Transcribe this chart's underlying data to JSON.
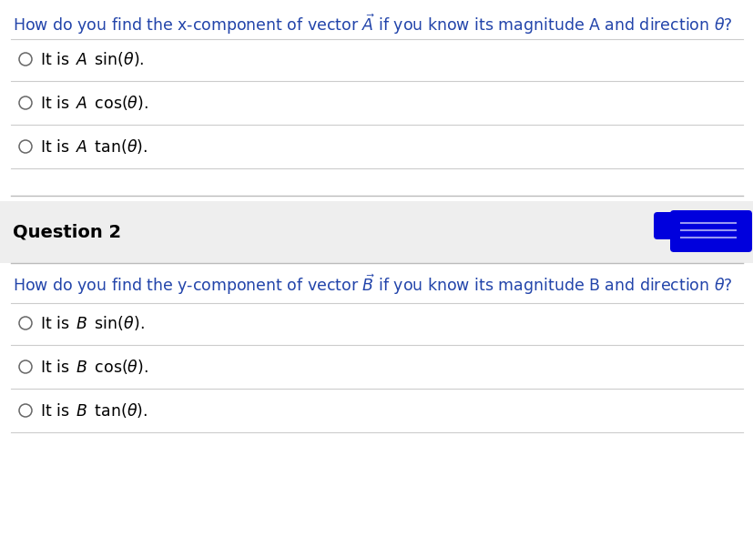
{
  "bg_color": "#ffffff",
  "header_color": "#2244aa",
  "q2_bg_color": "#eeeeee",
  "q2_label_color": "#000000",
  "blue_blob_color": "#0000dd",
  "line_color": "#cccccc",
  "circle_color": "#666666",
  "text_color": "#000000",
  "q1_question": "How do you find the x-component of vector",
  "q1_tail": " if you know its magnitude A and direction θ?",
  "q1_vec": "A",
  "q2_question": "How do you find the y-component of vector",
  "q2_tail": " if you know its magnitude B and direction θ?",
  "q2_vec": "B",
  "q2_label": "Question 2",
  "q1_opts": [
    "sin(θ).",
    "cos(θ).",
    "tan(θ)."
  ],
  "q1_vars": [
    "A",
    "A",
    "A"
  ],
  "q2_opts": [
    "sin(θ).",
    "cos(θ).",
    "tan(θ)."
  ],
  "q2_vars": [
    "B",
    "B",
    "B"
  ],
  "font_size_question": 12.5,
  "font_size_option": 12.5,
  "font_size_q2label": 14
}
